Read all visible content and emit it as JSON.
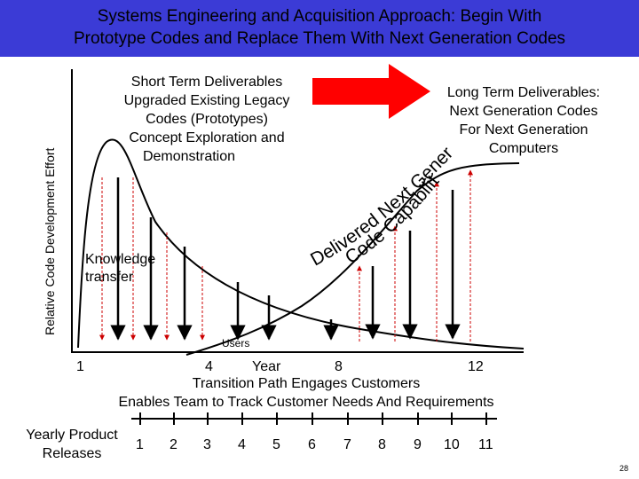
{
  "header": {
    "title_line1": "Systems Engineering  and Acquisition Approach:  Begin With",
    "title_line2": "Prototype Codes and Replace Them With Next Generation Codes"
  },
  "y_axis_label": "Relative Code Development Effort",
  "short_term": {
    "lines": [
      "Short Term Deliverables",
      "Upgraded Existing Legacy",
      "Codes (Prototypes)",
      "Concept Exploration and",
      "Demonstration"
    ]
  },
  "long_term": {
    "lines": [
      "Long Term Deliverables:",
      "Next Generation Codes",
      "For Next Generation",
      "Computers"
    ]
  },
  "curve_labels": {
    "delivered": "Delivered Next Generation",
    "capability": "Code Capability"
  },
  "knowledge_transfer": {
    "line1": "Knowledge",
    "line2": "transfer"
  },
  "users_label": "Users",
  "year_axis": {
    "label": "Year",
    "ticks": [
      "1",
      "4",
      "8",
      "12"
    ]
  },
  "transition_text": "Transition Path Engages Customers",
  "enables_text": "Enables Team to Track Customer Needs And Requirements",
  "releases": {
    "label_line1": "Yearly Product",
    "label_line2": "Releases",
    "numbers": [
      "1",
      "2",
      "3",
      "4",
      "5",
      "6",
      "7",
      "8",
      "9",
      "10",
      "11"
    ]
  },
  "page_number": "28",
  "colors": {
    "header_bg": "#3b3bd6",
    "arrow": "#ff0000",
    "curve": "#000000",
    "dashed_arrows": "#cc0000"
  }
}
